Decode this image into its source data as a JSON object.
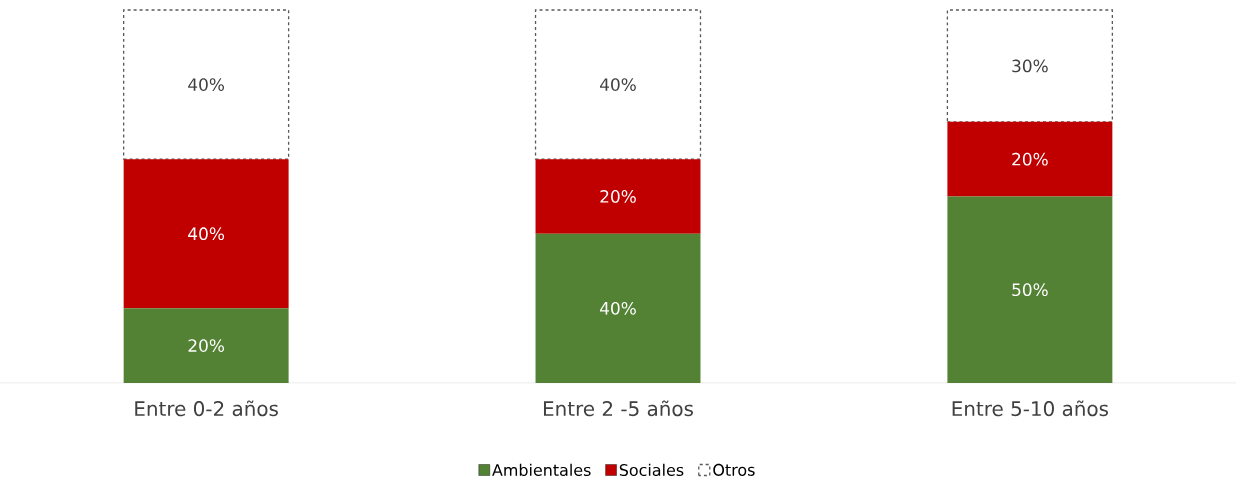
{
  "chart_data": {
    "type": "bar",
    "stacked": true,
    "legend": "bottom",
    "categories": [
      "Entre 0-2 años",
      "Entre 2 -5 años",
      "Entre 5-10 años"
    ],
    "series": [
      {
        "name": "Ambientales",
        "color": "#548235",
        "values": [
          20,
          40,
          50
        ],
        "value_labels": [
          "20%",
          "40%",
          "50%"
        ]
      },
      {
        "name": "Sociales",
        "color": "#c00000",
        "values": [
          40,
          20,
          20
        ],
        "value_labels": [
          "40%",
          "20%",
          "20%"
        ]
      },
      {
        "name": "Otros",
        "color": "#ffffff",
        "line_style": "dashed",
        "values": [
          40,
          40,
          30
        ],
        "value_labels": [
          "40%",
          "40%",
          "30%"
        ]
      }
    ]
  }
}
